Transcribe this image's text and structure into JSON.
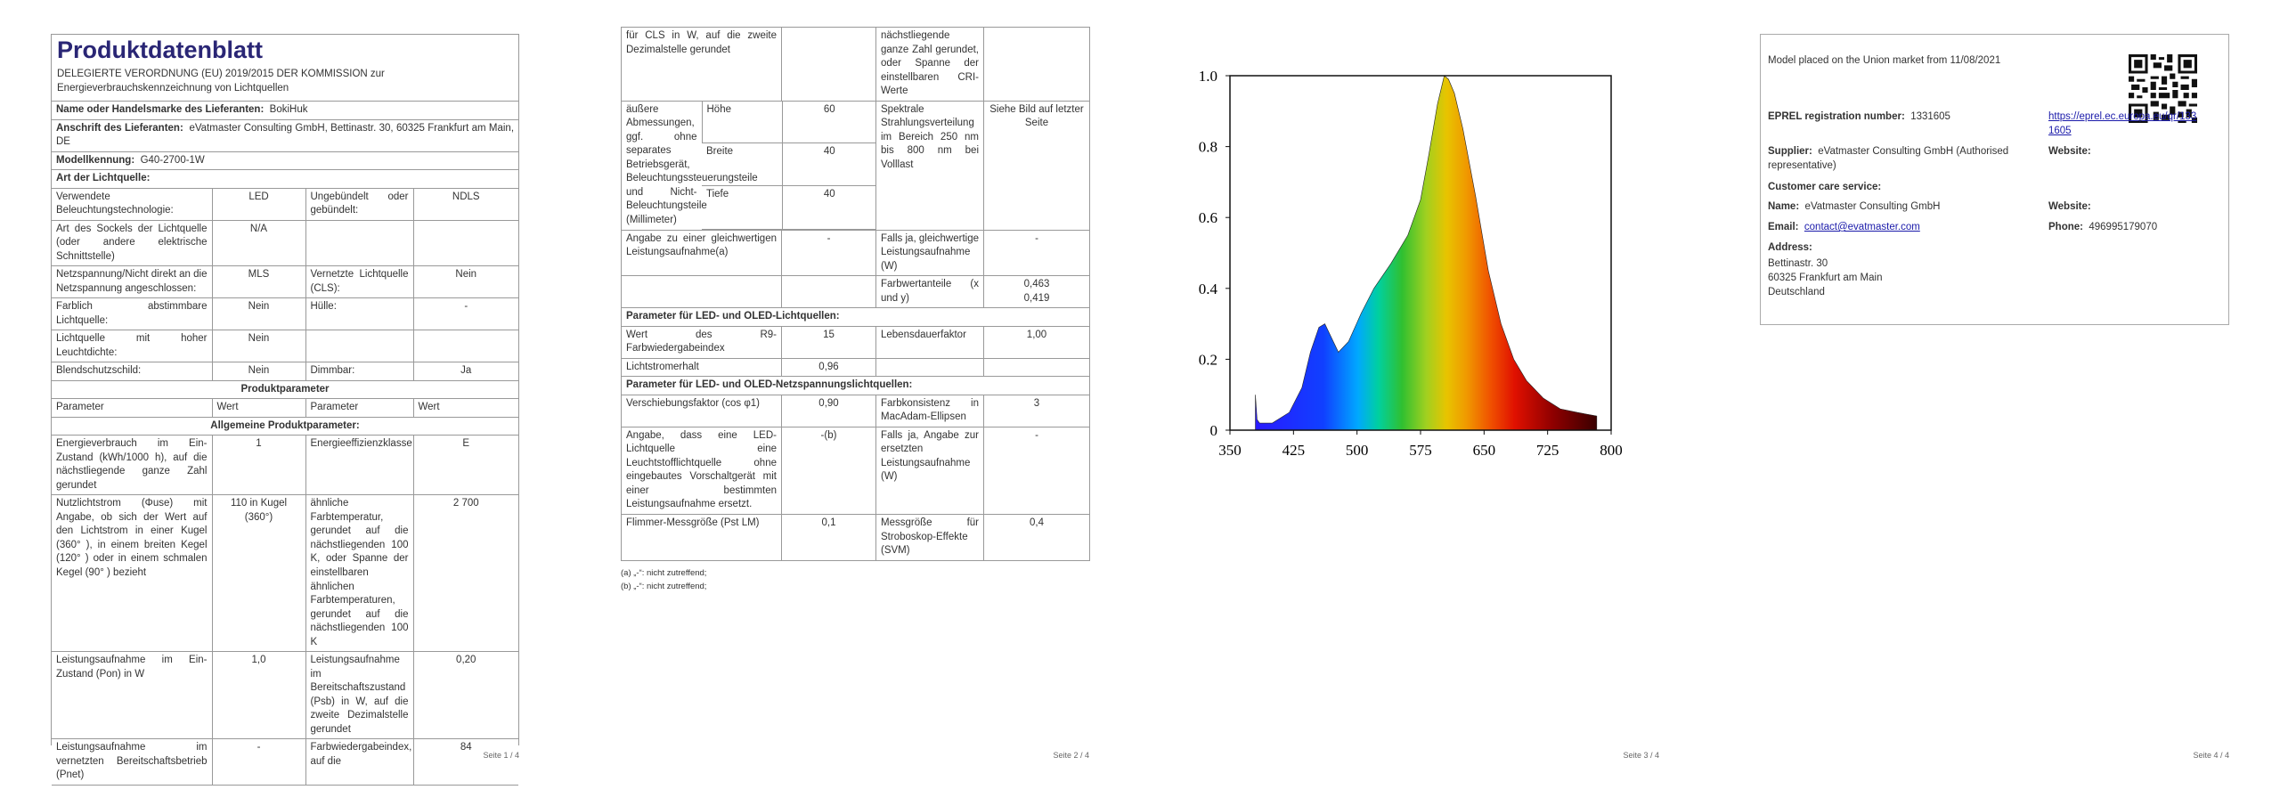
{
  "page1": {
    "title": "Produktdatenblatt",
    "subtitle": "DELEGIERTE VERORDNUNG (EU) 2019/2015 DER KOMMISSION zur Energieverbrauchskennzeichnung von Lichtquellen",
    "rows": [
      {
        "label": "Name oder Handelsmarke des Lieferanten:",
        "value": "BokiHuk"
      },
      {
        "label": "Anschrift des Lieferanten:",
        "value": "eVatmaster Consulting GmbH, Bettinastr. 30, 60325 Frankfurt am Main, DE"
      },
      {
        "label": "Modellkennung:",
        "value": "G40-2700-1W"
      },
      {
        "section": "Art der Lichtquelle:"
      },
      {
        "cells": [
          "Verwendete Beleuchtungstechnologie:",
          "LED",
          "Ungebündelt oder gebündelt:",
          "NDLS"
        ]
      },
      {
        "cells": [
          "Art des Sockels der Lichtquelle (oder andere elektrische Schnittstelle)",
          "N/A",
          null,
          null
        ]
      },
      {
        "cells": [
          "Netzspannung/Nicht direkt an die Netzspannung angeschlossen:",
          "MLS",
          "Vernetzte Lichtquelle (CLS):",
          "Nein"
        ]
      },
      {
        "cells": [
          "Farblich abstimmbare Lichtquelle:",
          "Nein",
          "Hülle:",
          "-"
        ]
      },
      {
        "cells": [
          "Lichtquelle mit hoher Leuchtdichte:",
          "Nein",
          null,
          null
        ]
      },
      {
        "cells": [
          "Blendschutzschild:",
          "Nein",
          "Dimmbar:",
          "Ja"
        ]
      },
      {
        "heading": "Produktparameter"
      },
      {
        "header": [
          "Parameter",
          "Wert",
          "Parameter",
          "Wert"
        ]
      },
      {
        "heading": "Allgemeine Produktparameter:"
      },
      {
        "cells": [
          "Energieverbrauch im Ein-Zustand (kWh/1000 h), auf die nächstliegende ganze Zahl gerundet",
          "1",
          "Energieeffizienzklasse",
          "E"
        ]
      },
      {
        "cells": [
          "Nutzlichtstrom (Φuse) mit Angabe, ob sich der Wert auf den Lichtstrom in einer Kugel (360° ), in einem breiten Kegel (120° ) oder in einem schmalen Kegel (90° ) bezieht",
          "110 in Kugel (360°)",
          "ähnliche Farbtemperatur, gerundet auf die nächstliegenden 100 K, oder Spanne der einstellbaren ähnlichen Farbtemperaturen, gerundet auf die nächstliegenden 100 K",
          "2 700"
        ]
      },
      {
        "cells": [
          "Leistungsaufnahme im Ein-Zustand (Pon) in W",
          "1,0",
          "Leistungsaufnahme im Bereitschaftszustand (Psb) in W, auf die zweite Dezimalstelle gerundet",
          "0,20"
        ]
      },
      {
        "cells": [
          "Leistungsaufnahme im vernetzten Bereitschaftsbetrieb (Pnet)",
          "-",
          "Farbwiedergabeindex, auf die",
          "84"
        ]
      }
    ],
    "footer": "Seite 1 / 4"
  },
  "page2": {
    "rows": [
      {
        "cells": [
          "für CLS in W, auf die zweite Dezimalstelle gerundet",
          null,
          "nächstliegende ganze Zahl gerundet, oder Spanne der einstellbaren CRI-Werte",
          null
        ]
      },
      {
        "dims_label": "äußere Abmessungen, ggf. ohne separates Betriebsgerät, Beleuchtungssteuerungsteile und Nicht-Beleuchtungsteile (Millimeter)",
        "dims": [
          [
            "Höhe",
            "60"
          ],
          [
            "Breite",
            "40"
          ],
          [
            "Tiefe",
            "40"
          ]
        ],
        "cells": [
          "Spektrale Strahlungsverteilung im Bereich 250 nm bis 800 nm bei Volllast",
          "Siehe Bild auf letzter Seite"
        ]
      },
      {
        "cells": [
          "Angabe zu einer gleichwertigen Leistungsaufnahme(a)",
          "-",
          "Falls ja, gleichwertige Leistungsaufnahme (W)",
          "-"
        ]
      },
      {
        "cells": [
          null,
          null,
          "Farbwertanteile (x und y)",
          [
            "0,463",
            "0,419"
          ]
        ]
      },
      {
        "section": "Parameter für LED- und OLED-Lichtquellen:"
      },
      {
        "cells": [
          "Wert des R9-Farbwiedergabeindex",
          "15",
          "Lebensdauerfaktor",
          "1,00"
        ]
      },
      {
        "cells": [
          "Lichtstromerhalt",
          "0,96",
          null,
          null
        ]
      },
      {
        "section": "Parameter für LED- und OLED-Netzspannungslichtquellen:"
      },
      {
        "cells": [
          "Verschiebungsfaktor (cos φ1)",
          "0,90",
          "Farbkonsistenz in MacAdam-Ellipsen",
          "3"
        ]
      },
      {
        "cells": [
          "Angabe, dass eine LED-Lichtquelle eine Leuchtstofflichtquelle ohne eingebautes Vorschaltgerät mit einer bestimmten Leistungsaufnahme ersetzt.",
          "-(b)",
          "Falls ja, Angabe zur ersetzten Leistungsaufnahme (W)",
          "-"
        ]
      },
      {
        "cells": [
          "Flimmer-Messgröße (Pst LM)",
          "0,1",
          "Messgröße für Stroboskop-Effekte (SVM)",
          "0,4"
        ]
      }
    ],
    "footnotes": [
      "(a) „-“: nicht zutreffend;",
      "(b) „-“: nicht zutreffend;"
    ],
    "footer": "Seite 2 / 4"
  },
  "page3": {
    "spectrum": {
      "type": "area",
      "x": [
        380,
        382,
        385,
        400,
        420,
        435,
        445,
        455,
        462,
        470,
        478,
        490,
        505,
        520,
        540,
        560,
        575,
        585,
        595,
        603,
        608,
        615,
        625,
        640,
        655,
        670,
        685,
        700,
        720,
        740,
        760,
        783
      ],
      "values": [
        0.1,
        0.03,
        0.02,
        0.02,
        0.05,
        0.12,
        0.22,
        0.29,
        0.3,
        0.26,
        0.22,
        0.25,
        0.33,
        0.4,
        0.47,
        0.55,
        0.65,
        0.78,
        0.92,
        1.0,
        0.99,
        0.95,
        0.85,
        0.66,
        0.45,
        0.3,
        0.2,
        0.14,
        0.09,
        0.06,
        0.05,
        0.04
      ],
      "xlim": [
        350,
        800
      ],
      "ylim": [
        0,
        1
      ],
      "xticks": [
        350,
        425,
        500,
        575,
        650,
        725,
        800
      ],
      "yticks": [
        0,
        0.2,
        0.4,
        0.6,
        0.8,
        {
          "value": 1,
          "label": "1.0"
        }
      ]
    },
    "footer": "Seite 3 / 4"
  },
  "page4": {
    "market": "Model placed on the Union market from 11/08/2021",
    "eprel_label": "EPREL registration number:",
    "eprel_value": "1331605",
    "eprel_link": "https://eprel.ec.europa.eu/qr/1331605",
    "supplier_label": "Supplier:",
    "supplier_value": "eVatmaster Consulting GmbH (Authorised representative)",
    "website_label": "Website:",
    "care_label": "Customer care service:",
    "name_label": "Name:",
    "name_value": "eVatmaster Consulting GmbH",
    "care_website_label": "Website:",
    "email_label": "Email:",
    "email_value": "contact@evatmaster.com",
    "phone_label": "Phone:",
    "phone_value": "496995179070",
    "address_label": "Address:",
    "address_lines": [
      "Bettinastr. 30",
      "60325 Frankfurt am Main",
      "Deutschland"
    ],
    "footer": "Seite 4 / 4"
  }
}
